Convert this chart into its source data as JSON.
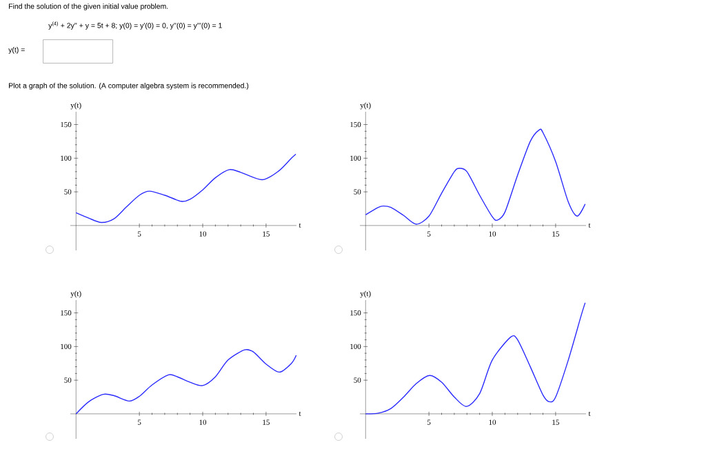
{
  "chart_data": [
    {
      "type": "line",
      "title": "Find the solution of the given initial value problem.",
      "annotations": [
        "y$^{(4)}$ + 2y'' + y = 5t + 8;    y(0) = y'(0) = 0,    y''(0) = y'''(0) = 1",
        "y(t) =",
        "Plot a graph of the solution. (A computer algebra system is recommended.)"
      ],
      "xlabel": "t",
      "ylabel": "y(t)",
      "xlim": [
        -0.45,
        17.4
      ],
      "ylim": [
        -37,
        169
      ],
      "xticks": [
        5,
        10,
        15
      ],
      "yticks": [
        50,
        100,
        150
      ],
      "x": [
        0,
        1,
        2,
        3,
        4,
        5,
        5.8,
        7,
        8.3,
        9,
        10,
        11,
        12.1,
        13,
        14.7,
        16,
        17,
        17.35
      ],
      "series": [
        {
          "color": "#2b2bff",
          "values": [
            19,
            11,
            4.5,
            10,
            28,
            45,
            51,
            45,
            36,
            39,
            53,
            71,
            83,
            79,
            68,
            81,
            100,
            106
          ]
        }
      ]
    },
    {
      "type": "line",
      "xlabel": "t",
      "ylabel": "y(t)",
      "xlim": [
        -0.45,
        17.4
      ],
      "ylim": [
        -37,
        169
      ],
      "xticks": [
        5,
        10,
        15
      ],
      "yticks": [
        50,
        100,
        150
      ],
      "x": [
        0,
        1,
        1.4,
        2,
        3,
        4,
        5,
        6,
        7,
        7.4,
        8,
        9,
        10,
        10.4,
        11,
        12,
        13,
        13.7,
        14,
        15,
        16,
        16.7,
        17.33
      ],
      "series": [
        {
          "color": "#2b2bff",
          "values": [
            16,
            27,
            29,
            27,
            15,
            2,
            14,
            48,
            80,
            85,
            80,
            45,
            13,
            8,
            20,
            75,
            125,
            142,
            138,
            95,
            35,
            14,
            32
          ]
        }
      ]
    },
    {
      "type": "line",
      "xlabel": "t",
      "ylabel": "y(t)",
      "xlim": [
        -0.45,
        17.4
      ],
      "ylim": [
        -37,
        169
      ],
      "xticks": [
        5,
        10,
        15
      ],
      "yticks": [
        50,
        100,
        150
      ],
      "x": [
        0,
        1,
        2.15,
        3,
        4.2,
        5,
        6,
        7.3,
        8,
        9,
        10,
        11,
        12,
        13.3,
        14,
        15,
        16.05,
        17,
        17.38
      ],
      "series": [
        {
          "color": "#2b2bff",
          "values": [
            0,
            18,
            29,
            27,
            19,
            26,
            43,
            58,
            55,
            47,
            42,
            55,
            80,
            95,
            92,
            74,
            62,
            75,
            87
          ]
        }
      ]
    },
    {
      "type": "line",
      "xlabel": "t",
      "ylabel": "y(t)",
      "xlim": [
        -0.45,
        17.4
      ],
      "ylim": [
        -37,
        169
      ],
      "xticks": [
        5,
        10,
        15
      ],
      "yticks": [
        50,
        100,
        150
      ],
      "x": [
        0,
        1,
        2,
        3,
        4,
        5.05,
        6,
        7,
        7.96,
        9,
        10,
        11.45,
        12,
        13,
        14,
        14.5,
        15,
        16,
        17,
        17.33
      ],
      "series": [
        {
          "color": "#2b2bff",
          "values": [
            0,
            1,
            8,
            25,
            45,
            57,
            47,
            25,
            11,
            30,
            80,
            114,
            110,
            70,
            28,
            18,
            25,
            80,
            145,
            165
          ]
        }
      ]
    }
  ]
}
